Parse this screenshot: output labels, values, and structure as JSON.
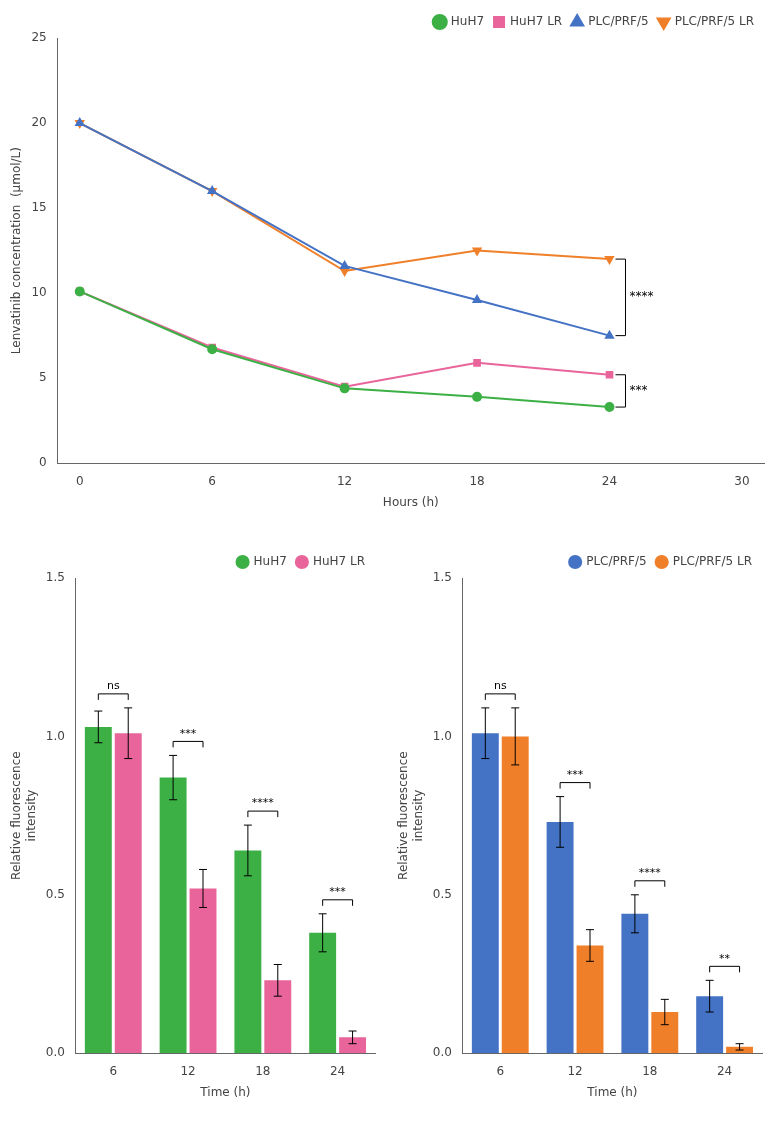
{
  "chart_data": [
    {
      "type": "line",
      "x": [
        0,
        6,
        12,
        18,
        24
      ],
      "series": [
        {
          "name": "HuH7",
          "color": "#3cb045",
          "marker": "circle",
          "values": [
            10.1,
            6.7,
            4.4,
            3.9,
            3.3
          ]
        },
        {
          "name": "HuH7 LR",
          "color": "#e8649a",
          "marker": "square",
          "values": [
            10.1,
            6.8,
            4.5,
            5.9,
            5.2
          ]
        },
        {
          "name": "PLC/PRF/5",
          "color": "#4472c4",
          "marker": "triangle-up",
          "values": [
            20.0,
            16.0,
            11.6,
            9.6,
            7.5
          ]
        },
        {
          "name": "PLC/PRF/5 LR",
          "color": "#f07f2a",
          "marker": "triangle-down",
          "values": [
            20.0,
            16.0,
            11.3,
            12.5,
            12.0
          ]
        }
      ],
      "xlabel": "Hours (h)",
      "ylabel": "Lenvatinib concentration  (μmol/L)",
      "xlim": [
        -1,
        31
      ],
      "xticks": [
        0,
        6,
        12,
        18,
        24,
        30
      ],
      "ylim": [
        0,
        25
      ],
      "yticks": [
        0,
        5,
        10,
        15,
        20,
        25
      ],
      "legend": "upper right",
      "grid": false,
      "annotations": [
        {
          "text": "****",
          "x": 24,
          "series": [
            "PLC/PRF/5",
            "PLC/PRF/5 LR"
          ]
        },
        {
          "text": "***",
          "x": 24,
          "series": [
            "HuH7",
            "HuH7 LR"
          ]
        }
      ]
    },
    {
      "type": "bar",
      "categories": [
        "6",
        "12",
        "18",
        "24"
      ],
      "series": [
        {
          "name": "HuH7",
          "color": "#3cb045",
          "values": [
            1.03,
            0.87,
            0.64,
            0.38
          ],
          "errors": [
            0.05,
            0.07,
            0.08,
            0.06
          ]
        },
        {
          "name": "HuH7 LR",
          "color": "#e8649a",
          "values": [
            1.01,
            0.52,
            0.23,
            0.05
          ],
          "errors": [
            0.08,
            0.06,
            0.05,
            0.02
          ]
        }
      ],
      "xlabel": "Time (h)",
      "ylabel": "Relative fluorescence\nintensity",
      "ylim": [
        0,
        1.5
      ],
      "yticks": [
        {
          "value": 0,
          "label": "0.0"
        },
        0.5,
        {
          "value": 1,
          "label": "1.0"
        },
        1.5
      ],
      "legend": "upper right",
      "grid": false,
      "annotations": [
        "ns",
        "***",
        "****",
        "***"
      ]
    },
    {
      "type": "bar",
      "categories": [
        "6",
        "12",
        "18",
        "24"
      ],
      "series": [
        {
          "name": "PLC/PRF/5",
          "color": "#4472c4",
          "values": [
            1.01,
            0.73,
            0.44,
            0.18
          ],
          "errors": [
            0.08,
            0.08,
            0.06,
            0.05
          ]
        },
        {
          "name": "PLC/PRF/5 LR",
          "color": "#f07f2a",
          "values": [
            1.0,
            0.34,
            0.13,
            0.02
          ],
          "errors": [
            0.09,
            0.05,
            0.04,
            0.01
          ]
        }
      ],
      "xlabel": "Time (h)",
      "ylabel": "Relative fluorescence\nintensity",
      "ylim": [
        0,
        1.5
      ],
      "yticks": [
        {
          "value": 0,
          "label": "0.0"
        },
        0.5,
        {
          "value": 1,
          "label": "1.0"
        },
        1.5
      ],
      "legend": "upper right",
      "grid": false,
      "annotations": [
        "ns",
        "***",
        "****",
        "**"
      ]
    }
  ]
}
